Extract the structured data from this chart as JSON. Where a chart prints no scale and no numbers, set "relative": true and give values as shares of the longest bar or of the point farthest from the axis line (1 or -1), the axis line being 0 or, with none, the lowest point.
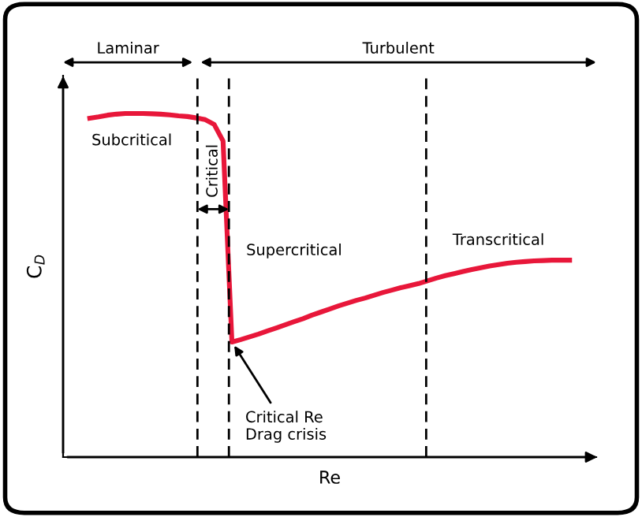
{
  "chart_data": {
    "type": "line",
    "relative": true,
    "xlabel": "Re",
    "ylabel": "C$_{D}$",
    "grid": false,
    "legend": false,
    "tick_labels": false,
    "line_style": "solid",
    "categories": [
      null,
      null,
      null,
      null,
      null,
      null,
      null,
      null,
      null,
      null,
      null,
      null,
      null,
      null,
      null,
      null,
      null,
      null,
      null,
      null,
      null,
      null,
      null,
      null,
      null,
      null,
      null,
      null,
      null,
      null,
      null,
      null,
      null,
      null,
      null,
      null,
      null,
      null,
      null,
      null,
      null,
      null,
      null,
      null,
      null,
      null,
      null,
      null,
      null,
      null,
      null,
      null,
      null,
      null,
      null,
      null,
      null,
      null,
      null,
      null,
      null
    ],
    "series": [
      {
        "color": "#e8173a",
        "values": [
          null,
          null,
          null,
          0.986,
          0.99,
          0.995,
          0.998,
          1.0,
          1.0,
          1.0,
          0.999,
          0.998,
          0.996,
          0.993,
          0.991,
          0.987,
          0.982,
          0.968,
          0.92,
          0.335,
          0.342,
          0.35,
          0.358,
          0.367,
          0.376,
          0.385,
          0.394,
          0.403,
          0.413,
          0.422,
          0.431,
          0.44,
          0.448,
          0.456,
          0.463,
          0.471,
          0.479,
          0.486,
          0.493,
          0.499,
          0.505,
          0.513,
          0.521,
          0.528,
          0.534,
          0.54,
          0.546,
          0.551,
          0.556,
          0.56,
          0.564,
          0.567,
          0.569,
          0.571,
          0.572,
          0.573,
          0.573,
          0.573,
          null,
          null,
          null
        ]
      }
    ],
    "annotations": [
      "Laminar",
      "Turbulent",
      "Critical",
      "Subcritical",
      "Supercritical",
      "Transcritical",
      "Critical Re\nDrag crisis"
    ]
  }
}
